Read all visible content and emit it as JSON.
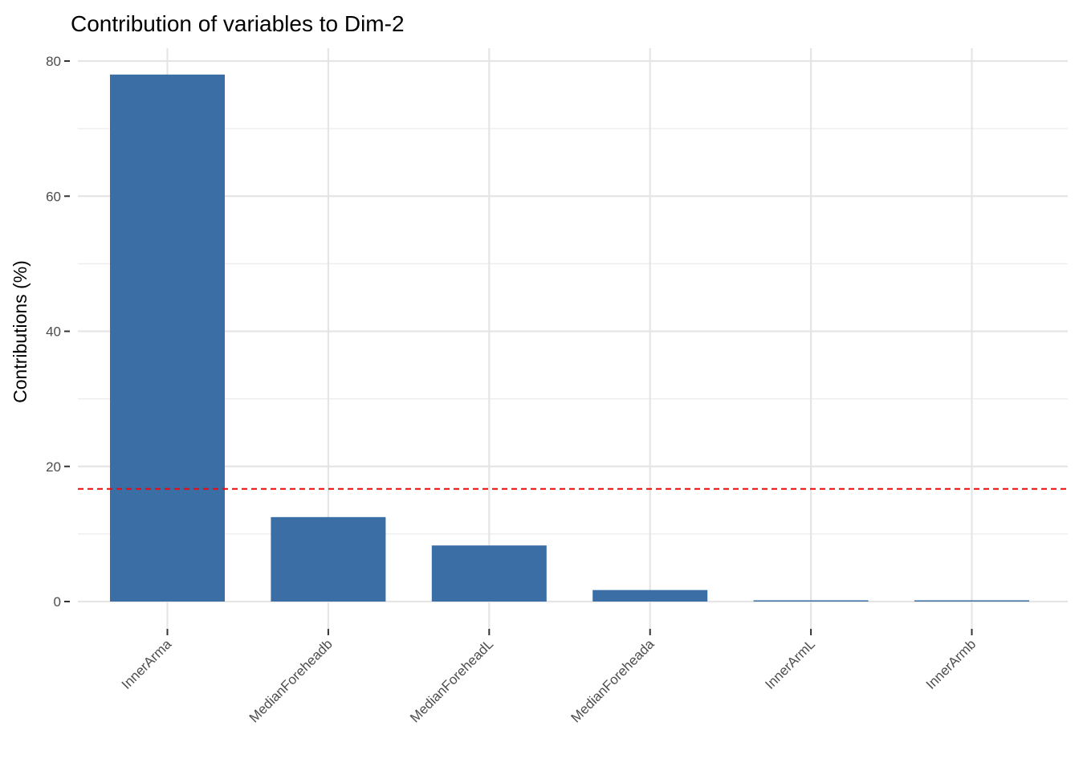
{
  "chart_data": {
    "type": "bar",
    "title": "Contribution of variables to Dim-2",
    "xlabel": "",
    "ylabel": "Contributions (%)",
    "categories": [
      "InnerArma",
      "MedianForeheadb",
      "MedianForeheadL",
      "MedianForeheada",
      "InnerArmL",
      "InnerArmb"
    ],
    "values": [
      78.0,
      12.5,
      8.3,
      1.7,
      0.18,
      0.1
    ],
    "ylim": [
      0,
      80
    ],
    "yticks": [
      "0",
      "20",
      "40",
      "60",
      "80"
    ],
    "reference_line": {
      "value": 16.67,
      "style": "dashed",
      "color": "#FF0000"
    },
    "bar_color": "#3A6EA5",
    "grid": true,
    "legend": "none"
  }
}
